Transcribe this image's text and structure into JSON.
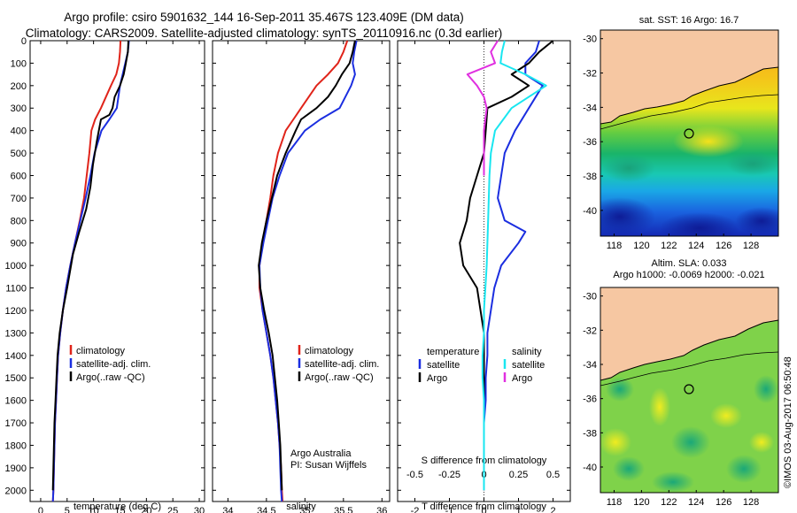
{
  "header": {
    "title_line1": "Argo profile: csiro 5901632_144 16-Sep-2011 35.467S 123.409E (DM data)",
    "title_line2": "Climatology: CARS2009. Satellite-adjusted climatology: synTS_20110916.nc (0.3d earlier)"
  },
  "colors": {
    "climatology": "#e0241a",
    "satellite": "#1b2ee0",
    "argo": "#000000",
    "salinity_sat": "#19e6f0",
    "salinity_argo": "#e030e0",
    "land": "#f6c7a2"
  },
  "chart_data": [
    {
      "type": "line",
      "xlabel": "temperature (deg C)",
      "xlim": [
        -2,
        31
      ],
      "xticks": [
        0,
        5,
        10,
        15,
        20,
        25,
        30
      ],
      "ylim": [
        2050,
        0
      ],
      "yticks": [
        0,
        100,
        200,
        300,
        400,
        500,
        600,
        700,
        800,
        900,
        1000,
        1100,
        1200,
        1300,
        1400,
        1500,
        1600,
        1700,
        1800,
        1900,
        2000
      ],
      "legend": [
        "climatology",
        "satellite-adj. clim.",
        "Argo(..raw -QC)"
      ],
      "legend_placement": "lower-middle",
      "series": [
        {
          "name": "climatology",
          "color": "#e0241a",
          "x": [
            15.1,
            15.0,
            14.8,
            14.3,
            13.3,
            11.4,
            10.3,
            9.6,
            9.2,
            8.7,
            8.2,
            7.4,
            6.5,
            5.6,
            4.8,
            4.2,
            3.7,
            3.3,
            3.1,
            2.9,
            2.7,
            2.6,
            2.5,
            2.4,
            2.3
          ],
          "y": [
            0,
            50,
            100,
            150,
            200,
            300,
            350,
            400,
            500,
            600,
            700,
            800,
            900,
            1000,
            1100,
            1200,
            1300,
            1400,
            1500,
            1600,
            1700,
            1800,
            1900,
            2000,
            2050
          ]
        },
        {
          "name": "satellite-adj. clim.",
          "color": "#1b2ee0",
          "x": [
            16.7,
            16.5,
            16.0,
            15.5,
            15.0,
            14.4,
            13.0,
            11.5,
            10.2,
            9.4,
            8.5,
            7.5,
            6.5,
            5.6,
            4.8,
            4.2,
            3.7,
            3.3,
            3.1,
            2.9,
            2.7,
            2.6,
            2.5,
            2.4,
            2.3
          ],
          "y": [
            0,
            50,
            100,
            150,
            200,
            300,
            350,
            400,
            500,
            600,
            700,
            800,
            900,
            1000,
            1100,
            1200,
            1300,
            1400,
            1500,
            1600,
            1700,
            1800,
            1900,
            2000,
            2050
          ]
        },
        {
          "name": "Argo(..raw -QC)",
          "color": "#000000",
          "x": [
            16.6,
            16.5,
            16.1,
            15.7,
            15.0,
            14.0,
            13.6,
            13.0,
            11.4,
            10.6,
            9.9,
            9.4,
            8.6,
            7.3,
            6.1,
            5.0,
            4.2,
            3.6,
            3.2,
            3.0,
            2.8,
            2.6,
            2.5,
            2.4,
            2.3
          ],
          "y": [
            0,
            50,
            100,
            150,
            200,
            250,
            300,
            330,
            350,
            450,
            550,
            650,
            750,
            850,
            950,
            1100,
            1200,
            1300,
            1400,
            1500,
            1600,
            1700,
            1800,
            1900,
            2000
          ]
        }
      ]
    },
    {
      "type": "line",
      "xlabel": "salinity",
      "xlim": [
        33.8,
        36.1
      ],
      "xticks": [
        34,
        34.5,
        35,
        35.5,
        36
      ],
      "ylim": [
        2050,
        0
      ],
      "legend": [
        "climatology",
        "satellite-adj. clim.",
        "Argo(..raw -QC)"
      ],
      "legend_placement": "lower-right",
      "series": [
        {
          "name": "climatology",
          "color": "#e0241a",
          "x": [
            35.55,
            35.5,
            35.43,
            35.3,
            35.15,
            34.95,
            34.85,
            34.75,
            34.65,
            34.59,
            34.55,
            34.5,
            34.45,
            34.41,
            34.41,
            34.45,
            34.5,
            34.55,
            34.59,
            34.62,
            34.65,
            34.67,
            34.69,
            34.7,
            34.71
          ],
          "y": [
            0,
            50,
            100,
            150,
            200,
            300,
            350,
            400,
            500,
            600,
            700,
            800,
            900,
            1000,
            1100,
            1200,
            1300,
            1400,
            1500,
            1600,
            1700,
            1800,
            1900,
            2000,
            2050
          ]
        },
        {
          "name": "satellite-adj. clim.",
          "color": "#1b2ee0",
          "x": [
            35.67,
            35.64,
            35.62,
            35.65,
            35.6,
            35.45,
            35.2,
            35.0,
            34.78,
            34.67,
            34.58,
            34.52,
            34.46,
            34.41,
            34.42,
            34.45,
            34.5,
            34.55,
            34.59,
            34.62,
            34.65,
            34.67,
            34.68,
            34.69,
            34.7
          ],
          "y": [
            0,
            50,
            100,
            150,
            200,
            300,
            350,
            400,
            500,
            600,
            700,
            800,
            900,
            1000,
            1100,
            1200,
            1300,
            1400,
            1500,
            1600,
            1700,
            1800,
            1900,
            2000,
            2050
          ]
        },
        {
          "name": "Argo(..raw -QC)",
          "color": "#000000",
          "x": [
            35.65,
            35.62,
            35.58,
            35.48,
            35.4,
            35.3,
            35.15,
            34.95,
            34.88,
            34.75,
            34.64,
            34.57,
            34.5,
            34.44,
            34.4,
            34.42,
            34.47,
            34.53,
            34.58,
            34.61,
            34.64,
            34.66,
            34.68,
            34.69,
            34.7
          ],
          "y": [
            0,
            50,
            100,
            150,
            200,
            250,
            300,
            350,
            400,
            500,
            600,
            700,
            800,
            900,
            1000,
            1100,
            1200,
            1300,
            1400,
            1500,
            1600,
            1700,
            1800,
            1900,
            2000
          ]
        }
      ],
      "annotations": [
        "Argo Australia",
        "PI: Susan Wijffels"
      ]
    },
    {
      "type": "line",
      "xlabel": "T difference from climatology",
      "xlabel_top": "S difference from climatology",
      "xlim": [
        -2.5,
        2.5
      ],
      "xticks": [
        -2,
        -1,
        0,
        1,
        2
      ],
      "xticks_top": [
        -0.5,
        -0.25,
        0,
        0.25,
        0.5
      ],
      "ylim": [
        2050,
        0
      ],
      "legend_groups": [
        {
          "title": "temperature",
          "items": [
            "satellite",
            "Argo"
          ]
        },
        {
          "title": "salinity",
          "items": [
            "satellite",
            "Argo"
          ]
        }
      ],
      "legend_placement": "lower-middle",
      "series": [
        {
          "name": "satellite",
          "group": "temperature",
          "color": "#1b2ee0",
          "x": [
            1.6,
            1.5,
            1.2,
            1.2,
            1.7,
            1.3,
            0.9,
            0.6,
            0.5,
            0.4,
            0.6,
            1.2,
            1.0,
            0.5,
            0.3,
            0.2,
            0.1,
            0.1,
            0.05,
            0.05,
            0.0,
            0.0,
            0.0,
            0.0
          ],
          "y": [
            0,
            50,
            100,
            150,
            200,
            300,
            400,
            500,
            600,
            700,
            800,
            850,
            900,
            1000,
            1100,
            1200,
            1300,
            1400,
            1500,
            1600,
            1700,
            1800,
            1900,
            2000
          ]
        },
        {
          "name": "Argo",
          "group": "temperature",
          "color": "#000000",
          "x": [
            2.0,
            1.6,
            1.3,
            0.8,
            1.3,
            0.8,
            0.1,
            0.05,
            0.0,
            -0.2,
            -0.4,
            -0.5,
            -0.7,
            -0.6,
            -0.2,
            -0.1,
            0.0,
            0.0,
            0.0,
            0.0,
            0.0,
            0.0
          ],
          "y": [
            0,
            50,
            100,
            150,
            200,
            250,
            300,
            400,
            500,
            600,
            700,
            800,
            900,
            1000,
            1100,
            1200,
            1300,
            1400,
            1500,
            1700,
            1900,
            2000
          ]
        },
        {
          "name": "satellite",
          "group": "salinity",
          "color": "#19e6f0",
          "x": [
            0.15,
            0.13,
            0.12,
            0.3,
            0.45,
            0.2,
            0.08,
            0.05,
            0.04,
            0.03,
            0.02,
            0.01,
            0.0,
            0.0,
            -0.01,
            -0.01,
            0.0,
            0.0,
            0.0,
            0.0
          ],
          "y": [
            0,
            50,
            100,
            150,
            200,
            300,
            400,
            500,
            600,
            800,
            1000,
            1100,
            1200,
            1300,
            1400,
            1500,
            1600,
            1700,
            1900,
            2000
          ]
        },
        {
          "name": "Argo",
          "group": "salinity",
          "color": "#e030e0",
          "x": [
            0.1,
            0.05,
            0.08,
            -0.12,
            -0.05,
            0.0,
            0.02,
            0.0,
            0.0,
            0.0,
            0.0
          ],
          "y": [
            0,
            50,
            100,
            150,
            200,
            250,
            300,
            400,
            500,
            550,
            600
          ]
        }
      ]
    },
    {
      "type": "heatmap",
      "title": "sat. SST: 16 Argo: 16.7",
      "xticks": [
        118,
        120,
        122,
        124,
        126,
        128
      ],
      "yticks": [
        -30,
        -32,
        -34,
        -36,
        -38,
        -40
      ],
      "xlim": [
        117,
        130
      ],
      "ylim": [
        -41.5,
        -29.5
      ],
      "marker": {
        "lon": 123.409,
        "lat": -35.467
      }
    },
    {
      "type": "heatmap",
      "title": "Altim. SLA: 0.033",
      "subtitle": "Argo h1000: -0.0069 h2000: -0.021",
      "xticks": [
        118,
        120,
        122,
        124,
        126,
        128
      ],
      "yticks": [
        -30,
        -32,
        -34,
        -36,
        -38,
        -40
      ],
      "xlim": [
        117,
        130
      ],
      "ylim": [
        -41.5,
        -29.5
      ],
      "marker": {
        "lon": 123.409,
        "lat": -35.467
      }
    }
  ],
  "credit": "©IMOS 03-Aug-2017 06:50:48"
}
